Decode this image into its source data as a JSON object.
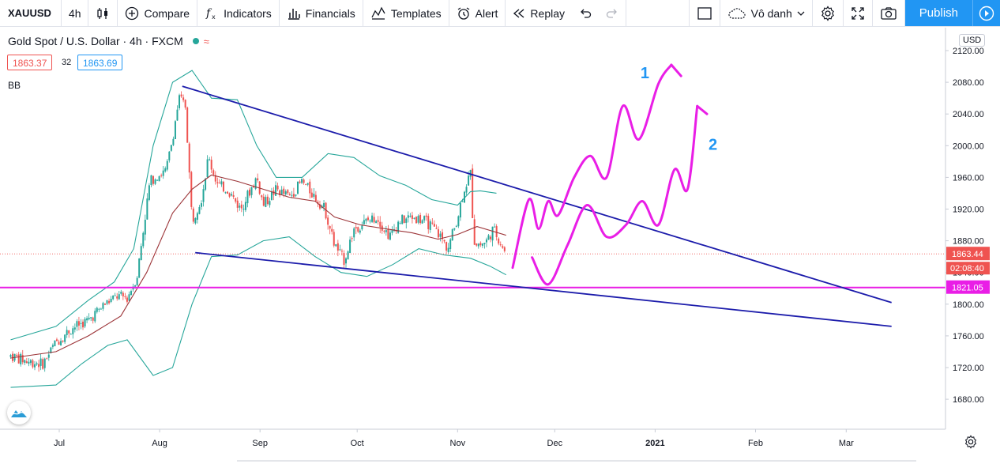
{
  "toolbar": {
    "symbol": "XAUUSD",
    "interval": "4h",
    "compare": "Compare",
    "indicators": "Indicators",
    "financials": "Financials",
    "templates": "Templates",
    "alert": "Alert",
    "replay": "Replay",
    "layout_name": "Vô danh",
    "publish": "Publish"
  },
  "legend": {
    "title": "Gold Spot / U.S. Dollar · 4h · FXCM",
    "bid": "1863.37",
    "spread": "32",
    "ask": "1863.69",
    "indicator": "BB"
  },
  "price_axis": {
    "currency": "USD",
    "ticks": [
      "2120.00",
      "2080.00",
      "2040.00",
      "2000.00",
      "1960.00",
      "1920.00",
      "1880.00",
      "1840.00",
      "1800.00",
      "1760.00",
      "1720.00",
      "1680.00"
    ],
    "last_price": "1863.44",
    "countdown": "02:08:40",
    "hline_price": "1821.05"
  },
  "time_axis": {
    "labels": [
      {
        "label": "Jul",
        "day": 1
      },
      {
        "label": "Aug",
        "day": 32
      },
      {
        "label": "Sep",
        "day": 63
      },
      {
        "label": "Oct",
        "day": 93
      },
      {
        "label": "Nov",
        "day": 124
      },
      {
        "label": "Dec",
        "day": 154
      },
      {
        "label": "2021",
        "day": 185
      },
      {
        "label": "Feb",
        "day": 216
      },
      {
        "label": "Mar",
        "day": 244
      }
    ]
  },
  "annotations": {
    "label1": "1",
    "label2": "2"
  },
  "colors": {
    "accent": "#2196f3",
    "candle_up": "#26a69a",
    "candle_down": "#ef5350",
    "bb_bands": "#26a69a",
    "bb_basis": "#9c3438",
    "trendline": "#1c1cab",
    "hline": "#e91ee6",
    "drawing": "#e91ee6",
    "label": "#2196f3"
  },
  "chart_data": {
    "type": "candlestick",
    "symbol": "XAUUSD",
    "ylim": [
      1650,
      2135
    ],
    "close_path": [
      [
        -14,
        1735
      ],
      [
        -9,
        1728
      ],
      [
        -4,
        1725
      ],
      [
        0,
        1752
      ],
      [
        5,
        1770
      ],
      [
        10,
        1780
      ],
      [
        15,
        1800
      ],
      [
        19,
        1810
      ],
      [
        22,
        1808
      ],
      [
        25,
        1835
      ],
      [
        27,
        1895
      ],
      [
        29,
        1955
      ],
      [
        31,
        1962
      ],
      [
        34,
        1968
      ],
      [
        36,
        2010
      ],
      [
        38,
        2060
      ],
      [
        40,
        2050
      ],
      [
        42,
        1905
      ],
      [
        45,
        1935
      ],
      [
        47,
        1985
      ],
      [
        50,
        1950
      ],
      [
        53,
        1945
      ],
      [
        57,
        1920
      ],
      [
        62,
        1960
      ],
      [
        64,
        1925
      ],
      [
        68,
        1945
      ],
      [
        72,
        1935
      ],
      [
        76,
        1955
      ],
      [
        80,
        1935
      ],
      [
        83,
        1920
      ],
      [
        86,
        1875
      ],
      [
        89,
        1855
      ],
      [
        92,
        1895
      ],
      [
        96,
        1905
      ],
      [
        99,
        1910
      ],
      [
        103,
        1885
      ],
      [
        106,
        1905
      ],
      [
        110,
        1910
      ],
      [
        114,
        1905
      ],
      [
        118,
        1890
      ],
      [
        121,
        1870
      ],
      [
        124,
        1910
      ],
      [
        126,
        1945
      ],
      [
        128,
        1965
      ],
      [
        129,
        1880
      ],
      [
        131,
        1875
      ],
      [
        133,
        1880
      ],
      [
        135,
        1895
      ],
      [
        137,
        1880
      ],
      [
        139,
        1863
      ]
    ],
    "bollinger": {
      "upper": [
        [
          -14,
          1755
        ],
        [
          0,
          1772
        ],
        [
          10,
          1805
        ],
        [
          18,
          1828
        ],
        [
          24,
          1870
        ],
        [
          30,
          2000
        ],
        [
          36,
          2080
        ],
        [
          42,
          2095
        ],
        [
          48,
          2060
        ],
        [
          56,
          2058
        ],
        [
          62,
          2000
        ],
        [
          68,
          1960
        ],
        [
          76,
          1960
        ],
        [
          84,
          1990
        ],
        [
          92,
          1985
        ],
        [
          100,
          1962
        ],
        [
          108,
          1950
        ],
        [
          116,
          1932
        ],
        [
          124,
          1925
        ],
        [
          128,
          1942
        ],
        [
          131,
          1943
        ],
        [
          136,
          1940
        ]
      ],
      "basis": [
        [
          -14,
          1732
        ],
        [
          0,
          1740
        ],
        [
          10,
          1760
        ],
        [
          20,
          1785
        ],
        [
          28,
          1840
        ],
        [
          36,
          1915
        ],
        [
          42,
          1945
        ],
        [
          48,
          1963
        ],
        [
          56,
          1955
        ],
        [
          64,
          1945
        ],
        [
          72,
          1935
        ],
        [
          80,
          1930
        ],
        [
          86,
          1910
        ],
        [
          94,
          1900
        ],
        [
          102,
          1895
        ],
        [
          110,
          1890
        ],
        [
          118,
          1882
        ],
        [
          124,
          1888
        ],
        [
          130,
          1898
        ],
        [
          139,
          1887
        ]
      ],
      "lower": [
        [
          -14,
          1695
        ],
        [
          0,
          1698
        ],
        [
          8,
          1725
        ],
        [
          16,
          1748
        ],
        [
          22,
          1755
        ],
        [
          30,
          1710
        ],
        [
          36,
          1720
        ],
        [
          42,
          1800
        ],
        [
          48,
          1860
        ],
        [
          56,
          1862
        ],
        [
          64,
          1880
        ],
        [
          72,
          1885
        ],
        [
          80,
          1860
        ],
        [
          88,
          1840
        ],
        [
          96,
          1835
        ],
        [
          104,
          1850
        ],
        [
          112,
          1870
        ],
        [
          120,
          1862
        ],
        [
          128,
          1858
        ],
        [
          134,
          1848
        ],
        [
          139,
          1837
        ]
      ]
    },
    "trendlines": [
      {
        "from": [
          39,
          2075
        ],
        "to": [
          258,
          1802
        ]
      },
      {
        "from": [
          43,
          1865
        ],
        "to": [
          258,
          1772
        ]
      }
    ],
    "horizontal_line": 1821.05,
    "scenario_1": [
      [
        141,
        1846
      ],
      [
        146,
        1932
      ],
      [
        149,
        1895
      ],
      [
        152,
        1930
      ],
      [
        155,
        1912
      ],
      [
        160,
        1960
      ],
      [
        165,
        1987
      ],
      [
        170,
        1960
      ],
      [
        175,
        2050
      ],
      [
        180,
        2008
      ],
      [
        186,
        2078
      ],
      [
        190,
        2102
      ],
      [
        193,
        2088
      ]
    ],
    "scenario_2": [
      [
        147,
        1859
      ],
      [
        152,
        1825
      ],
      [
        158,
        1875
      ],
      [
        164,
        1925
      ],
      [
        170,
        1885
      ],
      [
        176,
        1900
      ],
      [
        181,
        1930
      ],
      [
        186,
        1900
      ],
      [
        191,
        1970
      ],
      [
        195,
        1945
      ],
      [
        198,
        2050
      ],
      [
        201,
        2040
      ]
    ]
  }
}
